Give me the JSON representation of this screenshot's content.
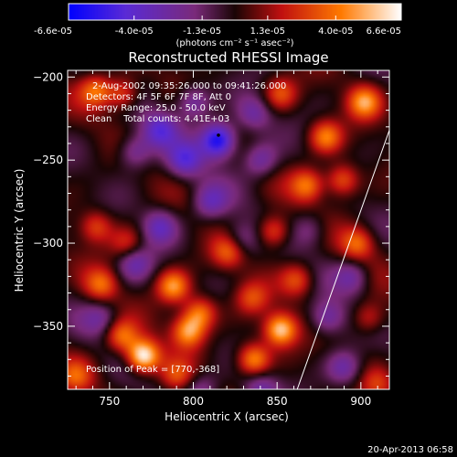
{
  "chart_data": {
    "type": "heatmap",
    "title": "Reconstructed RHESSI Image",
    "xlabel": "Heliocentric X (arcsec)",
    "ylabel": "Heliocentric Y (arcsec)",
    "xlim": [
      725,
      917
    ],
    "ylim": [
      -388,
      -196
    ],
    "xticks": [
      750,
      800,
      850,
      900
    ],
    "yticks": [
      -200,
      -250,
      -300,
      -350
    ],
    "xtick_labels": [
      "750",
      "800",
      "850",
      "900"
    ],
    "ytick_labels": [
      "-200",
      "-250",
      "-300",
      "-350"
    ],
    "colorbar": {
      "range": [
        -6.6e-05,
        6.6e-05
      ],
      "tick_labels": [
        "-6.6e-05",
        "-4.0e-05",
        "-1.3e-05",
        "1.3e-05",
        "4.0e-05",
        "6.6e-05"
      ],
      "units": "(photons cm⁻² s⁻¹ asec⁻²)",
      "colors": [
        "#0000ff",
        "#5a2ad6",
        "#7a2a7a",
        "#1a0505",
        "#c01010",
        "#ff7a00",
        "#ffffff"
      ]
    },
    "info_lines": [
      "2-Aug-2002 09:35:26.000 to 09:41:26.000",
      "Detectors: 4F 5F 6F 7F 8F, Att 0",
      "Energy Range: 25.0 - 50.0 keV",
      "Clean    Total counts: 4.41E+03"
    ],
    "peak_label": "Position of Peak = [770,-368]",
    "peak": [
      770,
      -368
    ],
    "limb_line": [
      [
        862,
        -388
      ],
      [
        917,
        -232
      ]
    ],
    "marker": [
      815,
      -235
    ],
    "hot_spots": [
      {
        "x": 770,
        "y": -368,
        "v": 1.0
      },
      {
        "x": 852,
        "y": -352,
        "v": 0.85
      },
      {
        "x": 797,
        "y": -353,
        "v": 0.7
      },
      {
        "x": 804,
        "y": -342,
        "v": 0.6
      },
      {
        "x": 836,
        "y": -370,
        "v": 0.7
      },
      {
        "x": 788,
        "y": -326,
        "v": 0.7
      },
      {
        "x": 745,
        "y": -325,
        "v": 0.5
      },
      {
        "x": 757,
        "y": -356,
        "v": 0.55
      },
      {
        "x": 742,
        "y": -208,
        "v": 0.55
      },
      {
        "x": 758,
        "y": -210,
        "v": 0.5
      },
      {
        "x": 902,
        "y": -215,
        "v": 0.65
      },
      {
        "x": 879,
        "y": -236,
        "v": 0.6
      },
      {
        "x": 868,
        "y": -265,
        "v": 0.55
      },
      {
        "x": 889,
        "y": -262,
        "v": 0.55
      },
      {
        "x": 848,
        "y": -293,
        "v": 0.55
      },
      {
        "x": 821,
        "y": -305,
        "v": 0.5
      },
      {
        "x": 852,
        "y": -210,
        "v": 0.45
      },
      {
        "x": 898,
        "y": -300,
        "v": 0.5
      },
      {
        "x": 862,
        "y": -322,
        "v": 0.45
      },
      {
        "x": 905,
        "y": -345,
        "v": 0.4
      },
      {
        "x": 835,
        "y": -333,
        "v": 0.4
      },
      {
        "x": 742,
        "y": -290,
        "v": 0.45
      },
      {
        "x": 910,
        "y": -385,
        "v": 0.35
      },
      {
        "x": 730,
        "y": -380,
        "v": 0.4
      },
      {
        "x": 760,
        "y": -300,
        "v": 0.35
      },
      {
        "x": 790,
        "y": -380,
        "v": 0.4
      }
    ],
    "cold_spots": [
      {
        "x": 815,
        "y": -238,
        "v": 1.0
      },
      {
        "x": 780,
        "y": -232,
        "v": 0.55
      },
      {
        "x": 800,
        "y": -215,
        "v": 0.5
      },
      {
        "x": 795,
        "y": -250,
        "v": 0.55
      },
      {
        "x": 765,
        "y": -245,
        "v": 0.45
      },
      {
        "x": 840,
        "y": -250,
        "v": 0.45
      },
      {
        "x": 836,
        "y": -222,
        "v": 0.4
      },
      {
        "x": 810,
        "y": -275,
        "v": 0.45
      },
      {
        "x": 780,
        "y": -290,
        "v": 0.5
      },
      {
        "x": 765,
        "y": -312,
        "v": 0.4
      },
      {
        "x": 828,
        "y": -298,
        "v": 0.35
      },
      {
        "x": 880,
        "y": -345,
        "v": 0.45
      },
      {
        "x": 890,
        "y": -375,
        "v": 0.45
      },
      {
        "x": 840,
        "y": -388,
        "v": 0.4
      },
      {
        "x": 895,
        "y": -320,
        "v": 0.4
      },
      {
        "x": 805,
        "y": -388,
        "v": 0.35
      },
      {
        "x": 745,
        "y": -345,
        "v": 0.3
      },
      {
        "x": 870,
        "y": -292,
        "v": 0.3
      }
    ]
  },
  "timestamp": "20-Apr-2013 06:58"
}
